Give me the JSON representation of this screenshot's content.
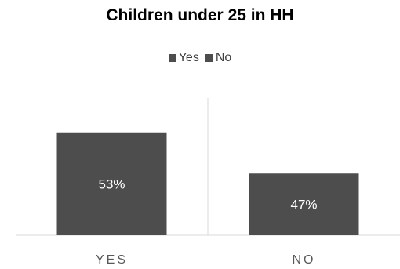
{
  "chart_data": {
    "type": "bar",
    "title": "Children under 25 in HH",
    "categories": [
      "YES",
      "NO"
    ],
    "series": [
      {
        "name": "Yes",
        "category": "YES",
        "value": 53,
        "label": "53%"
      },
      {
        "name": "No",
        "category": "NO",
        "value": 47,
        "label": "47%"
      }
    ],
    "ylim": [
      38,
      58
    ],
    "grid": false,
    "legend_position": "top",
    "colors": {
      "bar": "#4d4d4d",
      "label_text": "#ffffff",
      "axis_text": "#595959",
      "grid": "#d9d9d9"
    }
  }
}
